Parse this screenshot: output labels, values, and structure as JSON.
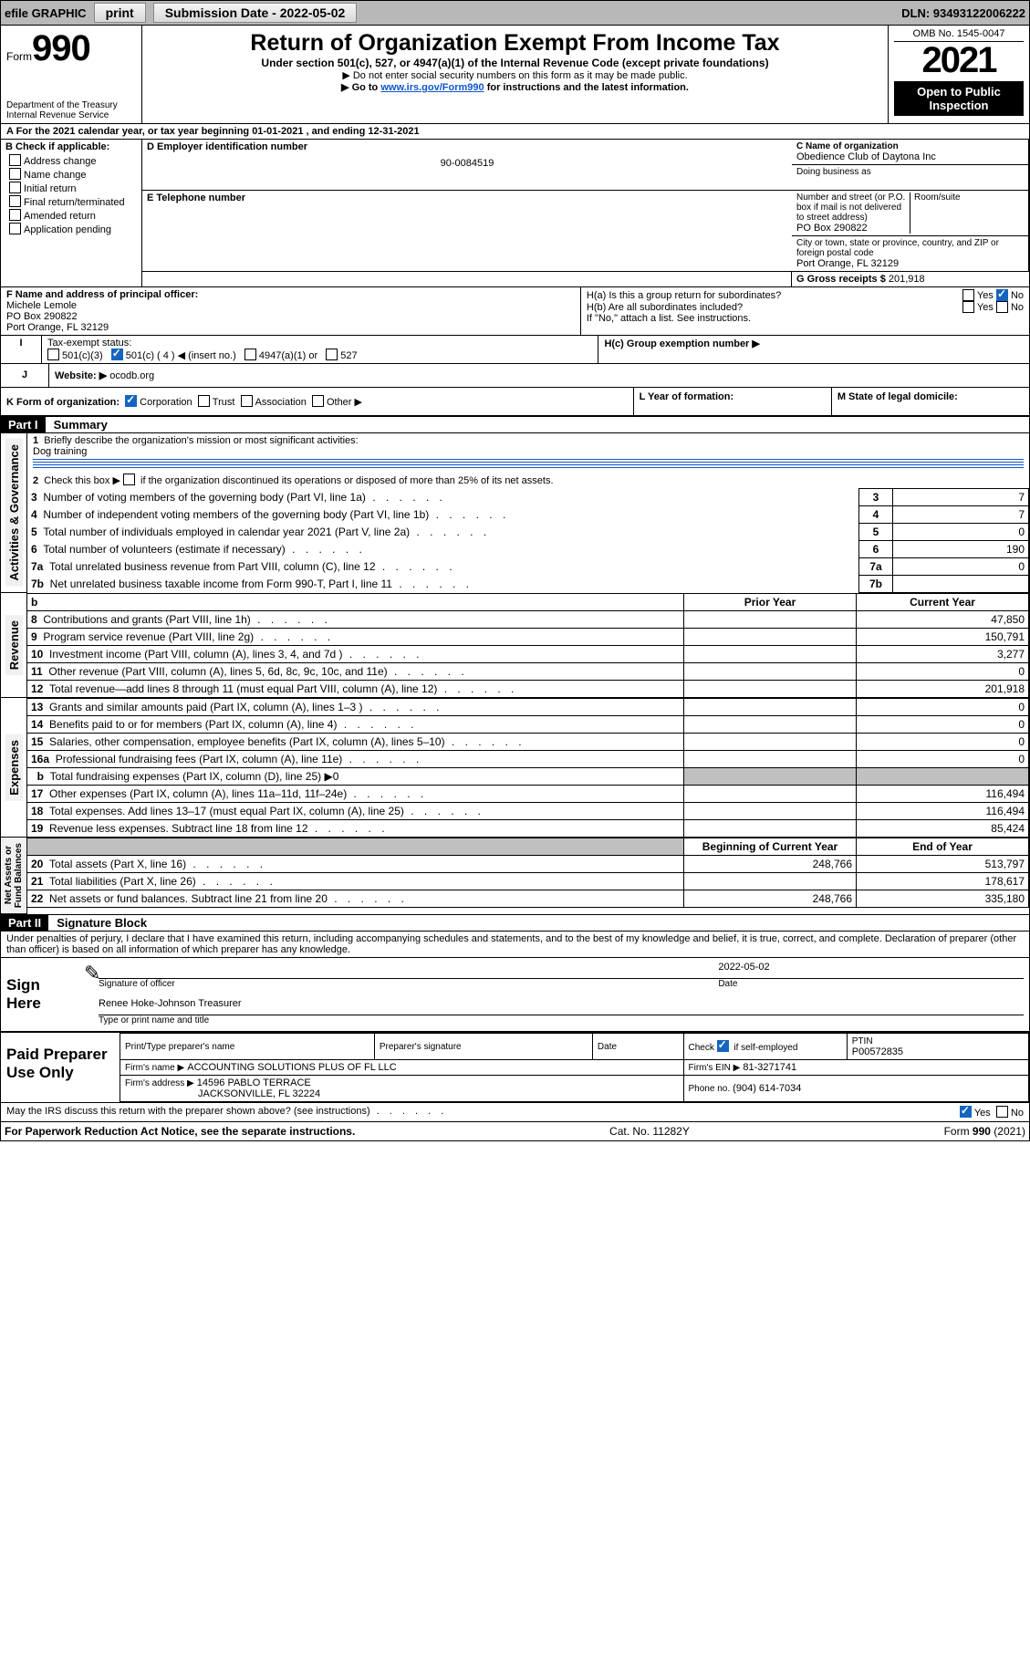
{
  "top": {
    "efile": "efile GRAPHIC",
    "print": "print",
    "submission_label": "Submission Date - 2022-05-02",
    "dln": "DLN: 93493122006222"
  },
  "header": {
    "form_label": "Form",
    "form_number": "990",
    "title": "Return of Organization Exempt From Income Tax",
    "subtitle": "Under section 501(c), 527, or 4947(a)(1) of the Internal Revenue Code (except private foundations)",
    "line1": "▶ Do not enter social security numbers on this form as it may be made public.",
    "line2_a": "▶ Go to ",
    "line2_link": "www.irs.gov/Form990",
    "line2_b": " for instructions and the latest information.",
    "dept": "Department of the Treasury",
    "irs": "Internal Revenue Service",
    "omb": "OMB No. 1545-0047",
    "year": "2021",
    "open_pub": "Open to Public Inspection"
  },
  "A": {
    "line": "A For the 2021 calendar year, or tax year beginning 01-01-2021    , and ending 12-31-2021"
  },
  "B": {
    "label": "B Check if applicable:",
    "items": [
      "Address change",
      "Name change",
      "Initial return",
      "Final return/terminated",
      "Amended return",
      "Application pending"
    ]
  },
  "C": {
    "name_label": "C Name of organization",
    "name": "Obedience Club of Daytona Inc",
    "dba": "Doing business as",
    "street_label": "Number and street (or P.O. box if mail is not delivered to street address)",
    "street": "PO Box 290822",
    "room_label": "Room/suite",
    "city_label": "City or town, state or province, country, and ZIP or foreign postal code",
    "city": "Port Orange, FL  32129"
  },
  "D": {
    "label": "D Employer identification number",
    "value": "90-0084519"
  },
  "E": {
    "label": "E Telephone number"
  },
  "G": {
    "label": "G Gross receipts $",
    "value": "201,918"
  },
  "F": {
    "label": "F  Name and address of principal officer:",
    "name": "Michele Lemole",
    "street": "PO Box 290822",
    "city": "Port Orange, FL  32129"
  },
  "H": {
    "a": "H(a)  Is this a group return for subordinates?",
    "b": "H(b)  Are all subordinates included?",
    "b2": "If \"No,\" attach a list. See instructions.",
    "c": "H(c)  Group exemption number ▶",
    "yes": "Yes",
    "no": "No"
  },
  "I": {
    "label": "Tax-exempt status:",
    "opts": [
      "501(c)(3)",
      "501(c) ( 4 ) ◀ (insert no.)",
      "4947(a)(1) or",
      "527"
    ]
  },
  "J": {
    "label": "Website: ▶",
    "value": "ocodb.org"
  },
  "K": {
    "label": "K Form of organization:",
    "opts": [
      "Corporation",
      "Trust",
      "Association",
      "Other ▶"
    ]
  },
  "L": {
    "label": "L Year of formation:"
  },
  "M": {
    "label": "M State of legal domicile:"
  },
  "part1": {
    "bar": "Part I",
    "title": "Summary",
    "q1": "Briefly describe the organization's mission or most significant activities:",
    "q1_val": "Dog training",
    "q2": "Check this box ▶       if the organization discontinued its operations or disposed of more than 25% of its net assets.",
    "lines_ag": [
      {
        "n": "3",
        "t": "Number of voting members of the governing body (Part VI, line 1a)",
        "v": "7"
      },
      {
        "n": "4",
        "t": "Number of independent voting members of the governing body (Part VI, line 1b)",
        "v": "7"
      },
      {
        "n": "5",
        "t": "Total number of individuals employed in calendar year 2021 (Part V, line 2a)",
        "v": "0"
      },
      {
        "n": "6",
        "t": "Total number of volunteers (estimate if necessary)",
        "v": "190"
      },
      {
        "n": "7a",
        "t": "Total unrelated business revenue from Part VIII, column (C), line 12",
        "v": "0"
      },
      {
        "n": "7b",
        "t": "Net unrelated business taxable income from Form 990-T, Part I, line 11",
        "v": ""
      }
    ],
    "col_prior": "Prior Year",
    "col_current": "Current Year",
    "rev": [
      {
        "n": "8",
        "t": "Contributions and grants (Part VIII, line 1h)",
        "cv": "47,850"
      },
      {
        "n": "9",
        "t": "Program service revenue (Part VIII, line 2g)",
        "cv": "150,791"
      },
      {
        "n": "10",
        "t": "Investment income (Part VIII, column (A), lines 3, 4, and 7d )",
        "cv": "3,277"
      },
      {
        "n": "11",
        "t": "Other revenue (Part VIII, column (A), lines 5, 6d, 8c, 9c, 10c, and 11e)",
        "cv": "0"
      },
      {
        "n": "12",
        "t": "Total revenue—add lines 8 through 11 (must equal Part VIII, column (A), line 12)",
        "cv": "201,918"
      }
    ],
    "exp": [
      {
        "n": "13",
        "t": "Grants and similar amounts paid (Part IX, column (A), lines 1–3 )",
        "cv": "0"
      },
      {
        "n": "14",
        "t": "Benefits paid to or for members (Part IX, column (A), line 4)",
        "cv": "0"
      },
      {
        "n": "15",
        "t": "Salaries, other compensation, employee benefits (Part IX, column (A), lines 5–10)",
        "cv": "0"
      },
      {
        "n": "16a",
        "t": "Professional fundraising fees (Part IX, column (A), line 11e)",
        "cv": "0"
      },
      {
        "n": "b",
        "t": "Total fundraising expenses (Part IX, column (D), line 25) ▶0",
        "cv": null,
        "nobox": true
      },
      {
        "n": "17",
        "t": "Other expenses (Part IX, column (A), lines 11a–11d, 11f–24e)",
        "cv": "116,494"
      },
      {
        "n": "18",
        "t": "Total expenses. Add lines 13–17 (must equal Part IX, column (A), line 25)",
        "cv": "116,494"
      },
      {
        "n": "19",
        "t": "Revenue less expenses. Subtract line 18 from line 12",
        "cv": "85,424"
      }
    ],
    "col_beg": "Beginning of Current Year",
    "col_end": "End of Year",
    "na": [
      {
        "n": "20",
        "t": "Total assets (Part X, line 16)",
        "pv": "248,766",
        "cv": "513,797"
      },
      {
        "n": "21",
        "t": "Total liabilities (Part X, line 26)",
        "pv": "",
        "cv": "178,617"
      },
      {
        "n": "22",
        "t": "Net assets or fund balances. Subtract line 21 from line 20",
        "pv": "248,766",
        "cv": "335,180"
      }
    ],
    "tabs": {
      "ag": "Activities & Governance",
      "rev": "Revenue",
      "exp": "Expenses",
      "na": "Net Assets or\nFund Balances"
    }
  },
  "part2": {
    "bar": "Part II",
    "title": "Signature Block",
    "decl": "Under penalties of perjury, I declare that I have examined this return, including accompanying schedules and statements, and to the best of my knowledge and belief, it is true, correct, and complete. Declaration of preparer (other than officer) is based on all information of which preparer has any knowledge.",
    "sign_here": "Sign Here",
    "sig_officer": "Signature of officer",
    "date_label": "Date",
    "sig_date": "2022-05-02",
    "name_title": "Renee Hoke-Johnson Treasurer",
    "name_title_label": "Type or print name and title",
    "paid": "Paid Preparer Use Only",
    "pp_name_label": "Print/Type preparer's name",
    "pp_sig_label": "Preparer's signature",
    "pp_date_label": "Date",
    "pp_check_label": "Check        if self-employed",
    "ptin_label": "PTIN",
    "ptin": "P00572835",
    "firm_name_label": "Firm's name    ▶",
    "firm_name": "ACCOUNTING SOLUTIONS PLUS OF FL LLC",
    "firm_ein_label": "Firm's EIN ▶",
    "firm_ein": "81-3271741",
    "firm_addr_label": "Firm's address ▶",
    "firm_addr1": "14596 PABLO TERRACE",
    "firm_addr2": "JACKSONVILLE, FL  32224",
    "phone_label": "Phone no.",
    "phone": "(904) 614-7034",
    "discuss": "May the IRS discuss this return with the preparer shown above? (see instructions)",
    "yes": "Yes",
    "no": "No"
  },
  "footer": {
    "pra": "For Paperwork Reduction Act Notice, see the separate instructions.",
    "cat": "Cat. No. 11282Y",
    "form": "Form 990 (2021)"
  }
}
